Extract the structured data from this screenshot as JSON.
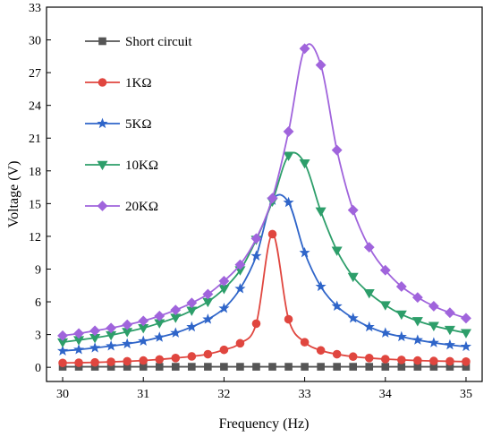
{
  "chart_data": {
    "type": "line",
    "xlabel": "Frequency (Hz)",
    "ylabel": "Voltage (V)",
    "xlim": [
      29.8,
      35.2
    ],
    "ylim": [
      -1.3,
      33
    ],
    "xticks": [
      30,
      31,
      32,
      33,
      34,
      35
    ],
    "yticks": [
      0,
      3,
      6,
      9,
      12,
      15,
      18,
      21,
      24,
      27,
      30,
      33
    ],
    "grid": false,
    "legend_position": "top-left",
    "x": [
      30.0,
      30.2,
      30.4,
      30.6,
      30.8,
      31.0,
      31.2,
      31.4,
      31.6,
      31.8,
      32.0,
      32.2,
      32.4,
      32.6,
      32.8,
      33.0,
      33.2,
      33.4,
      33.6,
      33.8,
      34.0,
      34.2,
      34.4,
      34.6,
      34.8,
      35.0
    ],
    "series": [
      {
        "name": "Short circuit",
        "color": "#555555",
        "marker": "square",
        "values": [
          0.05,
          0.05,
          0.05,
          0.05,
          0.05,
          0.05,
          0.05,
          0.05,
          0.05,
          0.05,
          0.05,
          0.05,
          0.05,
          0.05,
          0.05,
          0.05,
          0.05,
          0.05,
          0.05,
          0.05,
          0.05,
          0.05,
          0.05,
          0.05,
          0.05,
          0.05
        ]
      },
      {
        "name": "1KΩ",
        "color": "#e0463f",
        "marker": "circle",
        "values": [
          0.4,
          0.42,
          0.45,
          0.5,
          0.55,
          0.62,
          0.72,
          0.85,
          1.0,
          1.2,
          1.6,
          2.2,
          4.0,
          12.2,
          4.4,
          2.3,
          1.55,
          1.2,
          0.98,
          0.85,
          0.75,
          0.68,
          0.62,
          0.58,
          0.55,
          0.52
        ]
      },
      {
        "name": "5KΩ",
        "color": "#2f65c9",
        "marker": "star",
        "values": [
          1.5,
          1.62,
          1.78,
          1.95,
          2.15,
          2.4,
          2.75,
          3.15,
          3.7,
          4.4,
          5.4,
          7.2,
          10.2,
          15.3,
          15.1,
          10.5,
          7.4,
          5.6,
          4.5,
          3.7,
          3.15,
          2.8,
          2.5,
          2.25,
          2.05,
          1.9
        ]
      },
      {
        "name": "10KΩ",
        "color": "#2d9e6a",
        "marker": "triangle-down",
        "values": [
          2.3,
          2.5,
          2.7,
          2.95,
          3.25,
          3.6,
          4.05,
          4.55,
          5.2,
          6.0,
          7.2,
          8.9,
          11.7,
          15.2,
          19.4,
          18.7,
          14.3,
          10.7,
          8.3,
          6.8,
          5.7,
          4.85,
          4.25,
          3.8,
          3.45,
          3.15
        ]
      },
      {
        "name": "20KΩ",
        "color": "#a064dc",
        "marker": "diamond",
        "values": [
          2.9,
          3.1,
          3.35,
          3.6,
          3.9,
          4.25,
          4.7,
          5.25,
          5.9,
          6.7,
          7.9,
          9.4,
          11.8,
          15.5,
          21.6,
          29.2,
          27.7,
          19.9,
          14.4,
          11.0,
          8.9,
          7.4,
          6.4,
          5.6,
          5.0,
          4.5
        ]
      }
    ]
  }
}
